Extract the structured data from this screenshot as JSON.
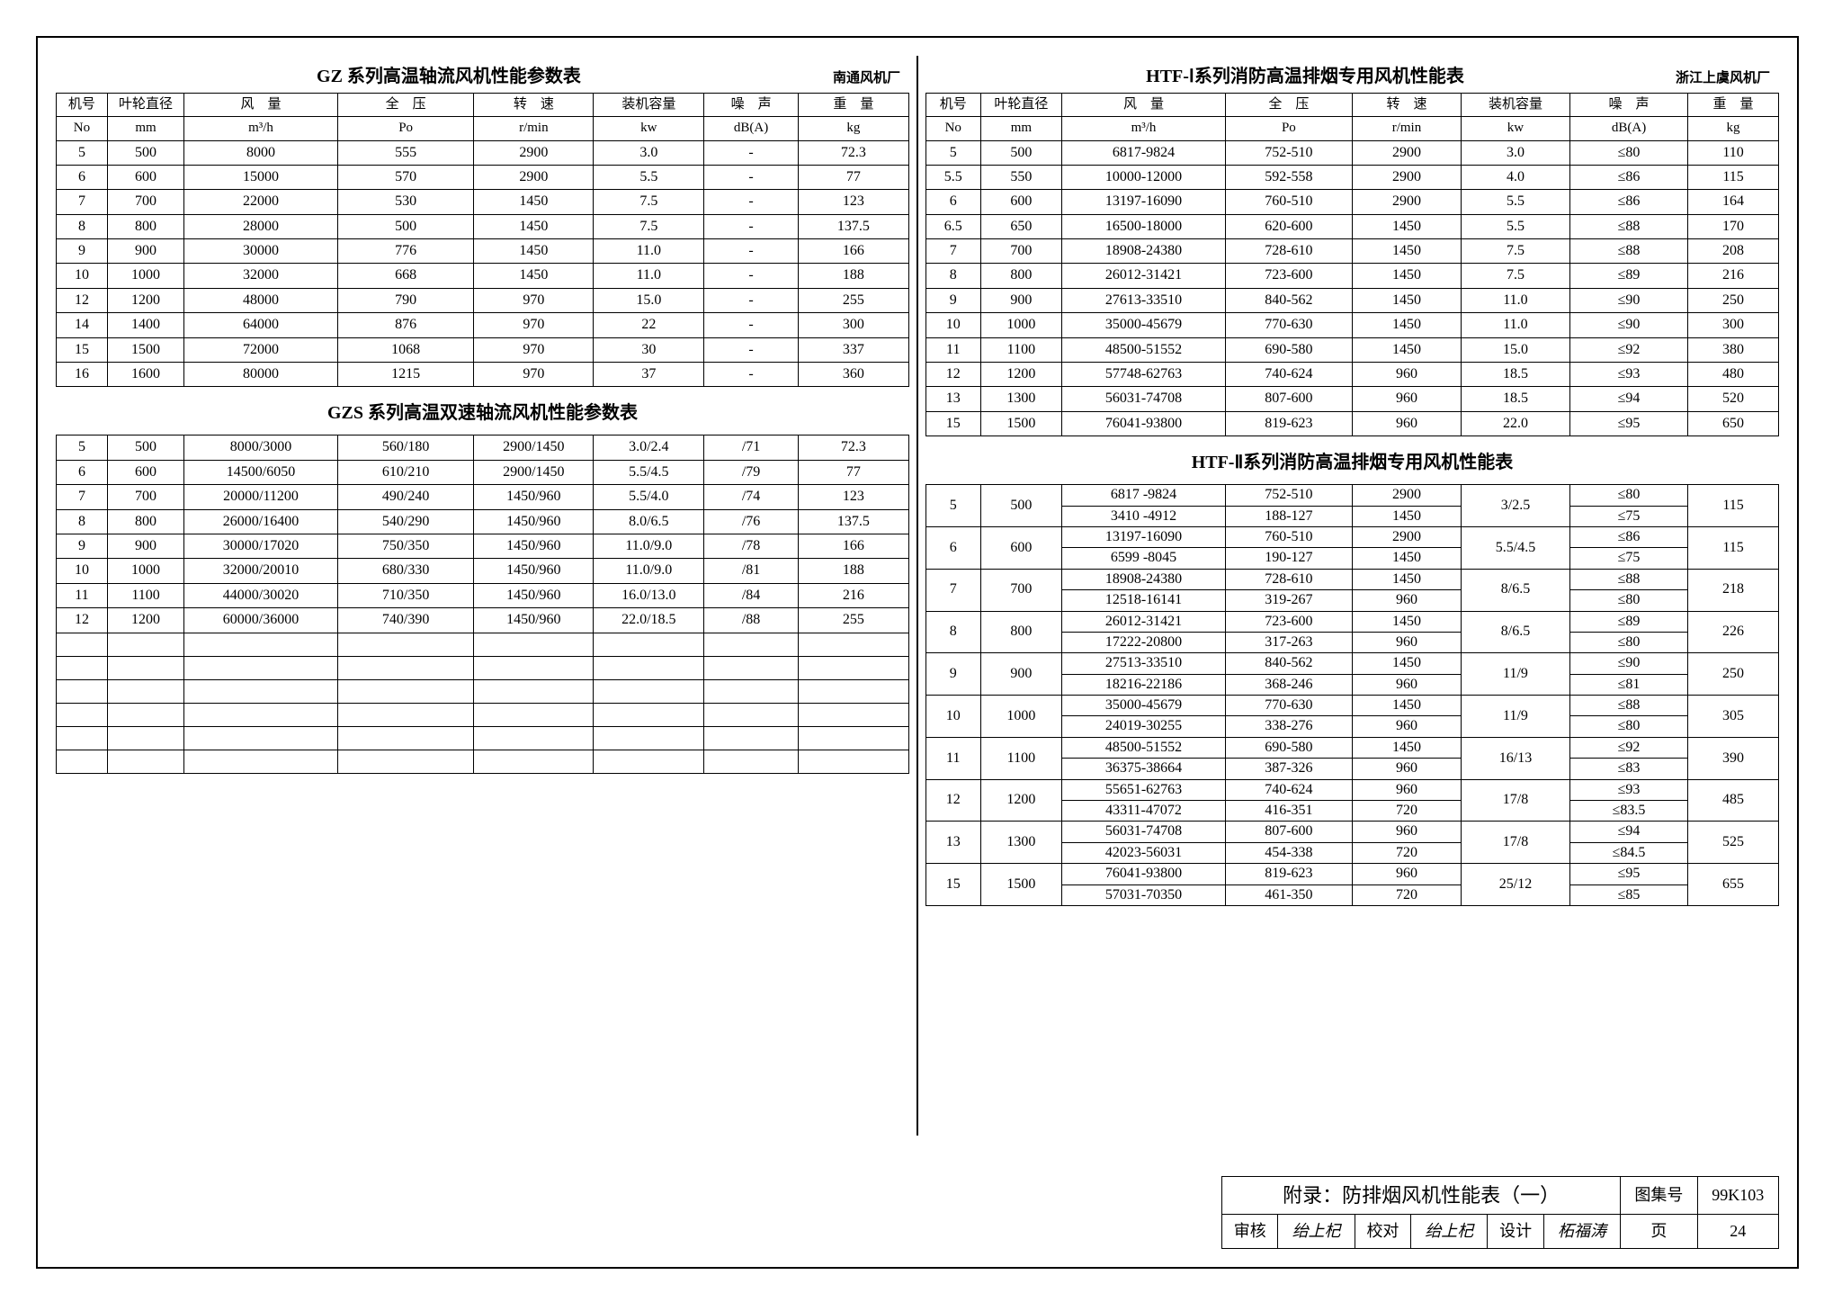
{
  "leftTop": {
    "title": "GZ 系列高温轴流风机性能参数表",
    "manufacturer": "南通风机厂",
    "headers": {
      "c1a": "机号",
      "c1b": "No",
      "c2a": "叶轮直径",
      "c2b": "mm",
      "c3a": "风　量",
      "c3b": "m³/h",
      "c4a": "全　压",
      "c4b": "Po",
      "c5a": "转　速",
      "c5b": "r/min",
      "c6a": "装机容量",
      "c6b": "kw",
      "c7a": "噪　声",
      "c7b": "dB(A)",
      "c8a": "重　量",
      "c8b": "kg"
    },
    "rows": [
      [
        "5",
        "500",
        "8000",
        "555",
        "2900",
        "3.0",
        "-",
        "72.3"
      ],
      [
        "6",
        "600",
        "15000",
        "570",
        "2900",
        "5.5",
        "-",
        "77"
      ],
      [
        "7",
        "700",
        "22000",
        "530",
        "1450",
        "7.5",
        "-",
        "123"
      ],
      [
        "8",
        "800",
        "28000",
        "500",
        "1450",
        "7.5",
        "-",
        "137.5"
      ],
      [
        "9",
        "900",
        "30000",
        "776",
        "1450",
        "11.0",
        "-",
        "166"
      ],
      [
        "10",
        "1000",
        "32000",
        "668",
        "1450",
        "11.0",
        "-",
        "188"
      ],
      [
        "12",
        "1200",
        "48000",
        "790",
        "970",
        "15.0",
        "-",
        "255"
      ],
      [
        "14",
        "1400",
        "64000",
        "876",
        "970",
        "22",
        "-",
        "300"
      ],
      [
        "15",
        "1500",
        "72000",
        "1068",
        "970",
        "30",
        "-",
        "337"
      ],
      [
        "16",
        "1600",
        "80000",
        "1215",
        "970",
        "37",
        "-",
        "360"
      ]
    ]
  },
  "leftBottom": {
    "title": "GZS 系列高温双速轴流风机性能参数表",
    "rows": [
      [
        "5",
        "500",
        "8000/3000",
        "560/180",
        "2900/1450",
        "3.0/2.4",
        "/71",
        "72.3"
      ],
      [
        "6",
        "600",
        "14500/6050",
        "610/210",
        "2900/1450",
        "5.5/4.5",
        "/79",
        "77"
      ],
      [
        "7",
        "700",
        "20000/11200",
        "490/240",
        "1450/960",
        "5.5/4.0",
        "/74",
        "123"
      ],
      [
        "8",
        "800",
        "26000/16400",
        "540/290",
        "1450/960",
        "8.0/6.5",
        "/76",
        "137.5"
      ],
      [
        "9",
        "900",
        "30000/17020",
        "750/350",
        "1450/960",
        "11.0/9.0",
        "/78",
        "166"
      ],
      [
        "10",
        "1000",
        "32000/20010",
        "680/330",
        "1450/960",
        "11.0/9.0",
        "/81",
        "188"
      ],
      [
        "11",
        "1100",
        "44000/30020",
        "710/350",
        "1450/960",
        "16.0/13.0",
        "/84",
        "216"
      ],
      [
        "12",
        "1200",
        "60000/36000",
        "740/390",
        "1450/960",
        "22.0/18.5",
        "/88",
        "255"
      ]
    ],
    "blank_rows": 6
  },
  "rightTop": {
    "title": "HTF-Ⅰ系列消防高温排烟专用风机性能表",
    "manufacturer": "浙江上虞风机厂",
    "headers": {
      "c1a": "机号",
      "c1b": "No",
      "c2a": "叶轮直径",
      "c2b": "mm",
      "c3a": "风　量",
      "c3b": "m³/h",
      "c4a": "全　压",
      "c4b": "Po",
      "c5a": "转　速",
      "c5b": "r/min",
      "c6a": "装机容量",
      "c6b": "kw",
      "c7a": "噪　声",
      "c7b": "dB(A)",
      "c8a": "重　量",
      "c8b": "kg"
    },
    "rows": [
      [
        "5",
        "500",
        "6817-9824",
        "752-510",
        "2900",
        "3.0",
        "≤80",
        "110"
      ],
      [
        "5.5",
        "550",
        "10000-12000",
        "592-558",
        "2900",
        "4.0",
        "≤86",
        "115"
      ],
      [
        "6",
        "600",
        "13197-16090",
        "760-510",
        "2900",
        "5.5",
        "≤86",
        "164"
      ],
      [
        "6.5",
        "650",
        "16500-18000",
        "620-600",
        "1450",
        "5.5",
        "≤88",
        "170"
      ],
      [
        "7",
        "700",
        "18908-24380",
        "728-610",
        "1450",
        "7.5",
        "≤88",
        "208"
      ],
      [
        "8",
        "800",
        "26012-31421",
        "723-600",
        "1450",
        "7.5",
        "≤89",
        "216"
      ],
      [
        "9",
        "900",
        "27613-33510",
        "840-562",
        "1450",
        "11.0",
        "≤90",
        "250"
      ],
      [
        "10",
        "1000",
        "35000-45679",
        "770-630",
        "1450",
        "11.0",
        "≤90",
        "300"
      ],
      [
        "11",
        "1100",
        "48500-51552",
        "690-580",
        "1450",
        "15.0",
        "≤92",
        "380"
      ],
      [
        "12",
        "1200",
        "57748-62763",
        "740-624",
        "960",
        "18.5",
        "≤93",
        "480"
      ],
      [
        "13",
        "1300",
        "56031-74708",
        "807-600",
        "960",
        "18.5",
        "≤94",
        "520"
      ],
      [
        "15",
        "1500",
        "76041-93800",
        "819-623",
        "960",
        "22.0",
        "≤95",
        "650"
      ]
    ]
  },
  "rightBottom": {
    "title": "HTF-Ⅱ系列消防高温排烟专用风机性能表",
    "rows": [
      {
        "no": "5",
        "dia": "500",
        "q": [
          "6817 -9824",
          "3410 -4912"
        ],
        "p": [
          "752-510",
          "188-127"
        ],
        "n": [
          "2900",
          "1450"
        ],
        "kw": "3/2.5",
        "db": [
          "≤80",
          "≤75"
        ],
        "kg": "115"
      },
      {
        "no": "6",
        "dia": "600",
        "q": [
          "13197-16090",
          "6599 -8045"
        ],
        "p": [
          "760-510",
          "190-127"
        ],
        "n": [
          "2900",
          "1450"
        ],
        "kw": "5.5/4.5",
        "db": [
          "≤86",
          "≤75"
        ],
        "kg": "115"
      },
      {
        "no": "7",
        "dia": "700",
        "q": [
          "18908-24380",
          "12518-16141"
        ],
        "p": [
          "728-610",
          "319-267"
        ],
        "n": [
          "1450",
          "960"
        ],
        "kw": "8/6.5",
        "db": [
          "≤88",
          "≤80"
        ],
        "kg": "218"
      },
      {
        "no": "8",
        "dia": "800",
        "q": [
          "26012-31421",
          "17222-20800"
        ],
        "p": [
          "723-600",
          "317-263"
        ],
        "n": [
          "1450",
          "960"
        ],
        "kw": "8/6.5",
        "db": [
          "≤89",
          "≤80"
        ],
        "kg": "226"
      },
      {
        "no": "9",
        "dia": "900",
        "q": [
          "27513-33510",
          "18216-22186"
        ],
        "p": [
          "840-562",
          "368-246"
        ],
        "n": [
          "1450",
          "960"
        ],
        "kw": "11/9",
        "db": [
          "≤90",
          "≤81"
        ],
        "kg": "250"
      },
      {
        "no": "10",
        "dia": "1000",
        "q": [
          "35000-45679",
          "24019-30255"
        ],
        "p": [
          "770-630",
          "338-276"
        ],
        "n": [
          "1450",
          "960"
        ],
        "kw": "11/9",
        "db": [
          "≤88",
          "≤80"
        ],
        "kg": "305"
      },
      {
        "no": "11",
        "dia": "1100",
        "q": [
          "48500-51552",
          "36375-38664"
        ],
        "p": [
          "690-580",
          "387-326"
        ],
        "n": [
          "1450",
          "960"
        ],
        "kw": "16/13",
        "db": [
          "≤92",
          "≤83"
        ],
        "kg": "390"
      },
      {
        "no": "12",
        "dia": "1200",
        "q": [
          "55651-62763",
          "43311-47072"
        ],
        "p": [
          "740-624",
          "416-351"
        ],
        "n": [
          "960",
          "720"
        ],
        "kw": "17/8",
        "db": [
          "≤93",
          "≤83.5"
        ],
        "kg": "485"
      },
      {
        "no": "13",
        "dia": "1300",
        "q": [
          "56031-74708",
          "42023-56031"
        ],
        "p": [
          "807-600",
          "454-338"
        ],
        "n": [
          "960",
          "720"
        ],
        "kw": "17/8",
        "db": [
          "≤94",
          "≤84.5"
        ],
        "kg": "525"
      },
      {
        "no": "15",
        "dia": "1500",
        "q": [
          "76041-93800",
          "57031-70350"
        ],
        "p": [
          "819-623",
          "461-350"
        ],
        "n": [
          "960",
          "720"
        ],
        "kw": "25/12",
        "db": [
          "≤95",
          "≤85"
        ],
        "kg": "655"
      }
    ]
  },
  "footer": {
    "appendix": "附录：防排烟风机性能表（一）",
    "set_label": "图集号",
    "set_no": "99K103",
    "review_label": "审核",
    "check_label": "校对",
    "design_label": "设计",
    "page_label": "页",
    "page_no": "24",
    "sig1": "绐上杞",
    "sig2": "绐上杞",
    "sig3": "柘福涛"
  }
}
